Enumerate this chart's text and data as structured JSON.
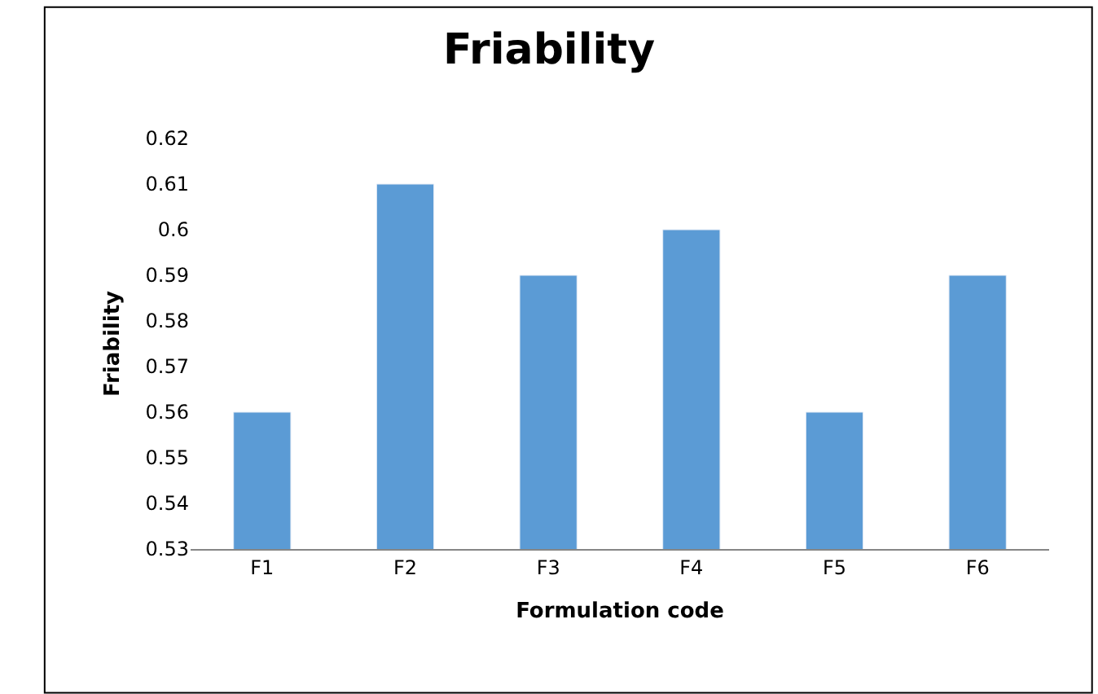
{
  "chart_data": {
    "type": "bar",
    "title": "Friability",
    "xlabel": "Formulation code",
    "ylabel": "Friability",
    "categories": [
      "F1",
      "F2",
      "F3",
      "F4",
      "F5",
      "F6"
    ],
    "values": [
      0.56,
      0.61,
      0.59,
      0.6,
      0.56,
      0.59
    ],
    "color": "#5b9bd5",
    "ylim": [
      0.53,
      0.62
    ],
    "yticks": [
      0.53,
      0.54,
      0.55,
      0.56,
      0.57,
      0.58,
      0.59,
      0.6,
      0.61,
      0.62
    ]
  }
}
